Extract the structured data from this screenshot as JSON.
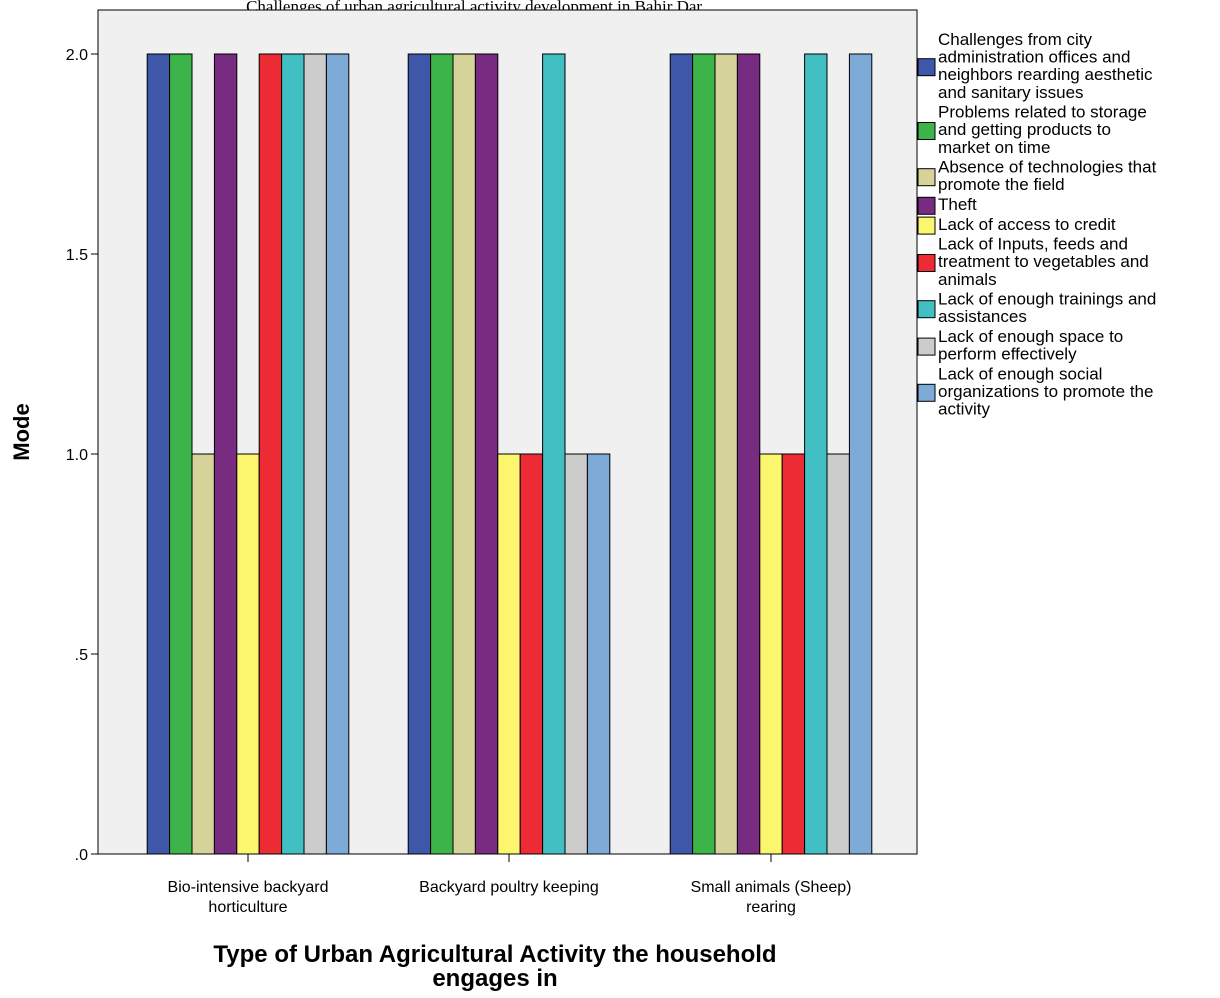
{
  "chart_data": {
    "type": "bar",
    "title": "Challenges of urban agricultural activity development in Bahir Dar...",
    "xlabel": "Type of Urban Agricultural Activity the household engages in",
    "ylabel": "Mode",
    "ylim": [
      0,
      2.0
    ],
    "yticks": [
      {
        "value": 0,
        "label": ".0"
      },
      {
        "value": 0.5,
        "label": ".5"
      },
      {
        "value": 1.0,
        "label": "1.0"
      },
      {
        "value": 1.5,
        "label": "1.5"
      },
      {
        "value": 2.0,
        "label": "2.0"
      }
    ],
    "categories": [
      "Bio-intensive backyard horticulture",
      "Backyard poultry keeping",
      "Small animals (Sheep) rearing"
    ],
    "legend_position": "right",
    "series": [
      {
        "name": "Challenges from city administration offices and neighbors rearding aesthetic and sanitary issues",
        "color": "#3f57a9",
        "values": [
          2,
          2,
          2
        ]
      },
      {
        "name": "Problems related to storage and getting products to market on time",
        "color": "#3cb44a",
        "values": [
          2,
          2,
          2
        ]
      },
      {
        "name": "Absence of technologies that promote the field",
        "color": "#d5d29a",
        "values": [
          1,
          2,
          2
        ]
      },
      {
        "name": "Theft",
        "color": "#772c82",
        "values": [
          2,
          2,
          2
        ]
      },
      {
        "name": "Lack of access to credit",
        "color": "#fbf66e",
        "values": [
          1,
          1,
          1
        ]
      },
      {
        "name": "Lack of Inputs,  feeds and treatment to vegetables and animals",
        "color": "#ec2b35",
        "values": [
          2,
          1,
          1
        ]
      },
      {
        "name": "Lack of enough trainings and assistances",
        "color": "#41bfc3",
        "values": [
          2,
          2,
          2
        ]
      },
      {
        "name": "Lack of enough space to perform effectively",
        "color": "#cccccc",
        "values": [
          2,
          1,
          1
        ]
      },
      {
        "name": "Lack of enough social organizations to promote the activity",
        "color": "#7daad7",
        "values": [
          2,
          1,
          2
        ]
      }
    ]
  }
}
